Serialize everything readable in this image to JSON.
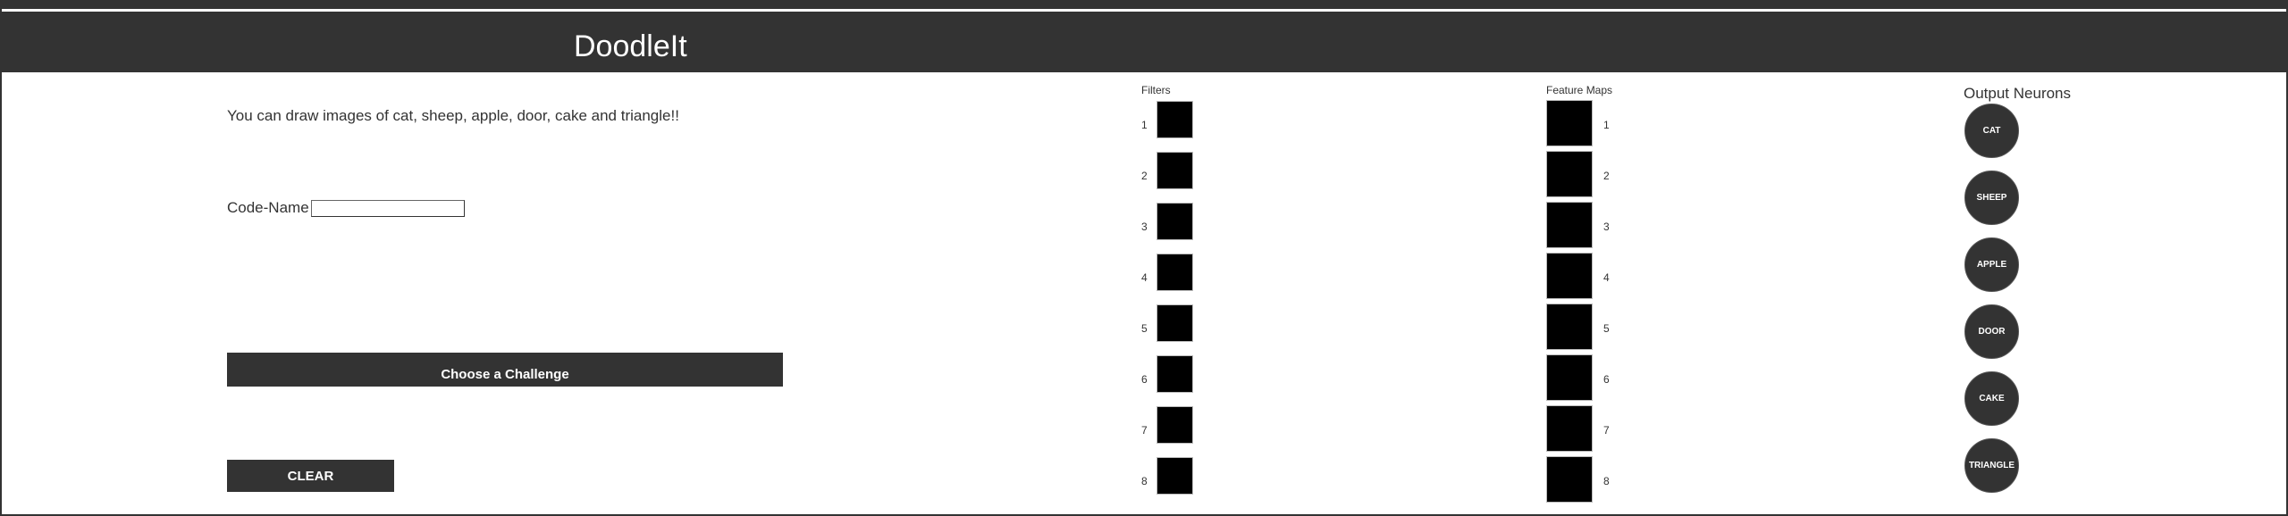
{
  "header": {
    "title": "DoodleIt"
  },
  "intro": {
    "text": "You can draw images of cat, sheep, apple, door, cake and triangle!!"
  },
  "code_name": {
    "label": "Code-Name :",
    "value": "",
    "placeholder": ""
  },
  "buttons": {
    "challenge": "Choose a Challenge",
    "clear": "CLEAR"
  },
  "filters": {
    "title": "Filters",
    "items": [
      {
        "label": "1"
      },
      {
        "label": "2"
      },
      {
        "label": "3"
      },
      {
        "label": "4"
      },
      {
        "label": "5"
      },
      {
        "label": "6"
      },
      {
        "label": "7"
      },
      {
        "label": "8"
      }
    ]
  },
  "feature_maps": {
    "title": "Feature Maps",
    "items": [
      {
        "label": "1"
      },
      {
        "label": "2"
      },
      {
        "label": "3"
      },
      {
        "label": "4"
      },
      {
        "label": "5"
      },
      {
        "label": "6"
      },
      {
        "label": "7"
      },
      {
        "label": "8"
      }
    ]
  },
  "output_neurons": {
    "title": "Output Neurons",
    "items": [
      {
        "label": "CAT"
      },
      {
        "label": "SHEEP"
      },
      {
        "label": "APPLE"
      },
      {
        "label": "DOOR"
      },
      {
        "label": "CAKE"
      },
      {
        "label": "TRIANGLE"
      }
    ]
  },
  "colors": {
    "header_bg": "#333333",
    "button_bg": "#333333",
    "neuron_bg": "#333333",
    "panel_box": "#000000"
  }
}
